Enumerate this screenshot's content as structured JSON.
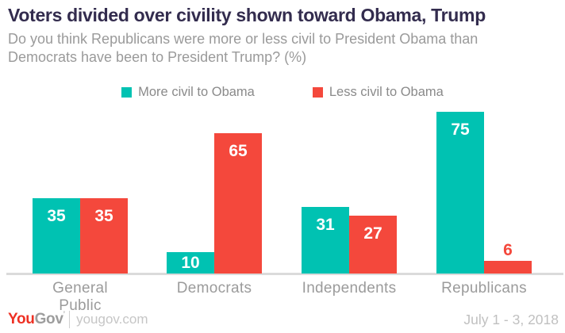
{
  "title": "Voters divided over civility shown toward Obama, Trump",
  "subtitle_lines": [
    "Do you think Republicans were more or less civil to President Obama than",
    "Democrats have been to President Trump? (%)"
  ],
  "legend": [
    {
      "label": "More civil to Obama",
      "color": "#00C2B2"
    },
    {
      "label": "Less civil to Obama",
      "color": "#F4483C"
    }
  ],
  "chart_data": {
    "type": "bar",
    "categories": [
      "General Public",
      "Democrats",
      "Independents",
      "Republicans"
    ],
    "series": [
      {
        "name": "More civil to Obama",
        "color": "#00C2B2",
        "values": [
          35,
          10,
          31,
          75
        ]
      },
      {
        "name": "Less civil to Obama",
        "color": "#F4483C",
        "values": [
          35,
          65,
          27,
          6
        ]
      }
    ],
    "ylim": [
      0,
      75
    ],
    "grid": false,
    "legend_position": "top",
    "value_labels": true,
    "value_label_color_inside": "#FFFFFF",
    "xlabel": "",
    "ylabel": ""
  },
  "colors": {
    "title": "#332C4E",
    "subtitle": "#9A9A9A",
    "axis_labels": "#9B9B9B",
    "baseline": "#DBDBDB",
    "teal": "#00C2B2",
    "red": "#F4483C",
    "logo_red": "#EE3124",
    "logo_gray": "#9D9D9D"
  },
  "footer": {
    "logo_you": "You",
    "logo_gov": "Gov",
    "logo_mark": "’",
    "logo_site": "yougov.com",
    "date_range": "July 1 - 3, 2018"
  }
}
